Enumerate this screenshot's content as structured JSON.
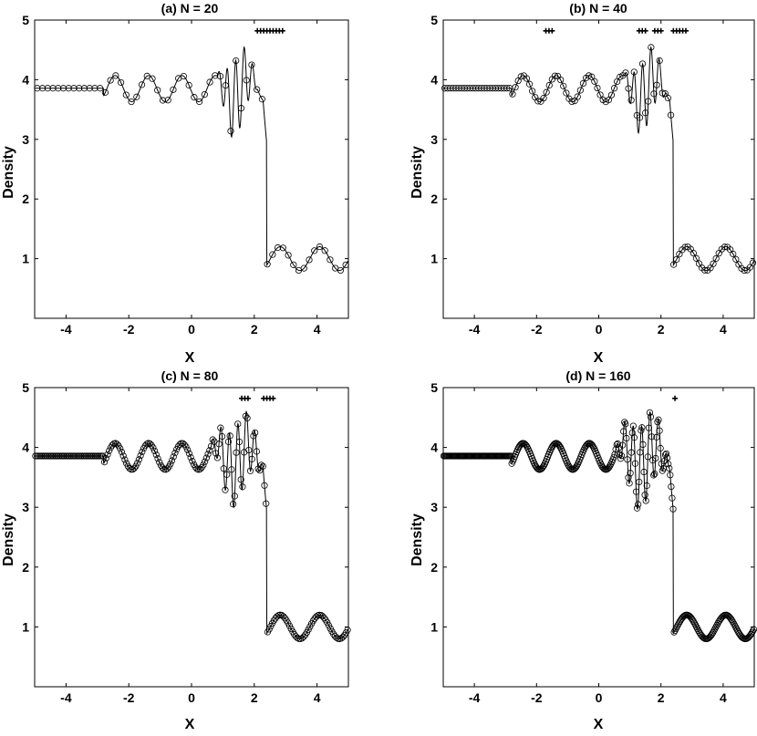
{
  "chart_data": [
    {
      "type": "line",
      "title": "(a) N = 20",
      "xlabel": "X",
      "ylabel": "Density",
      "xlim": [
        -5,
        5
      ],
      "ylim": [
        0,
        5
      ],
      "xticks": [
        -4,
        -2,
        0,
        2,
        4
      ],
      "yticks": [
        1,
        2,
        3,
        4,
        5
      ],
      "grid": false,
      "shock_x": 2.4,
      "osc_region": [
        0.8,
        2.1
      ],
      "osc_amp": 0.65,
      "reference_line": true,
      "marker_count": 60,
      "marker_style": "circle",
      "flag_markers": [
        2.1,
        2.2,
        2.3,
        2.4,
        2.5,
        2.6,
        2.7,
        2.8,
        2.9
      ],
      "flag_y": 4.82
    },
    {
      "type": "line",
      "title": "(b) N = 40",
      "xlabel": "X",
      "ylabel": "Density",
      "xlim": [
        -5,
        5
      ],
      "ylim": [
        0,
        5
      ],
      "xticks": [
        -4,
        -2,
        0,
        2,
        4
      ],
      "yticks": [
        1,
        2,
        3,
        4,
        5
      ],
      "grid": false,
      "shock_x": 2.4,
      "osc_region": [
        0.8,
        2.2
      ],
      "osc_amp": 0.6,
      "reference_line": true,
      "marker_count": 110,
      "marker_style": "circle",
      "flag_markers": [
        -1.7,
        -1.6,
        -1.5,
        1.3,
        1.4,
        1.5,
        1.8,
        1.9,
        2.0,
        2.4,
        2.5,
        2.6,
        2.7,
        2.8
      ],
      "flag_y": 4.82
    },
    {
      "type": "line",
      "title": "(c) N = 80",
      "xlabel": "X",
      "ylabel": "Density",
      "xlim": [
        -5,
        5
      ],
      "ylim": [
        0,
        5
      ],
      "xticks": [
        -4,
        -2,
        0,
        2,
        4
      ],
      "yticks": [
        1,
        2,
        3,
        4,
        5
      ],
      "grid": false,
      "shock_x": 2.4,
      "osc_region": [
        0.6,
        2.3
      ],
      "osc_amp": 0.65,
      "reference_line": true,
      "marker_count": 200,
      "marker_style": "circle",
      "flag_markers": [
        1.6,
        1.7,
        1.8,
        2.3,
        2.4,
        2.5,
        2.6
      ],
      "flag_y": 4.82
    },
    {
      "type": "line",
      "title": "(d) N = 160",
      "xlabel": "X",
      "ylabel": "Density",
      "xlim": [
        -5,
        5
      ],
      "ylim": [
        0,
        5
      ],
      "xticks": [
        -4,
        -2,
        0,
        2,
        4
      ],
      "yticks": [
        1,
        2,
        3,
        4,
        5
      ],
      "grid": false,
      "shock_x": 2.4,
      "osc_region": [
        0.5,
        2.3
      ],
      "osc_amp": 0.7,
      "reference_line": true,
      "marker_count": 320,
      "marker_style": "circle",
      "flag_markers": [
        2.45
      ],
      "flag_y": 4.82
    }
  ]
}
